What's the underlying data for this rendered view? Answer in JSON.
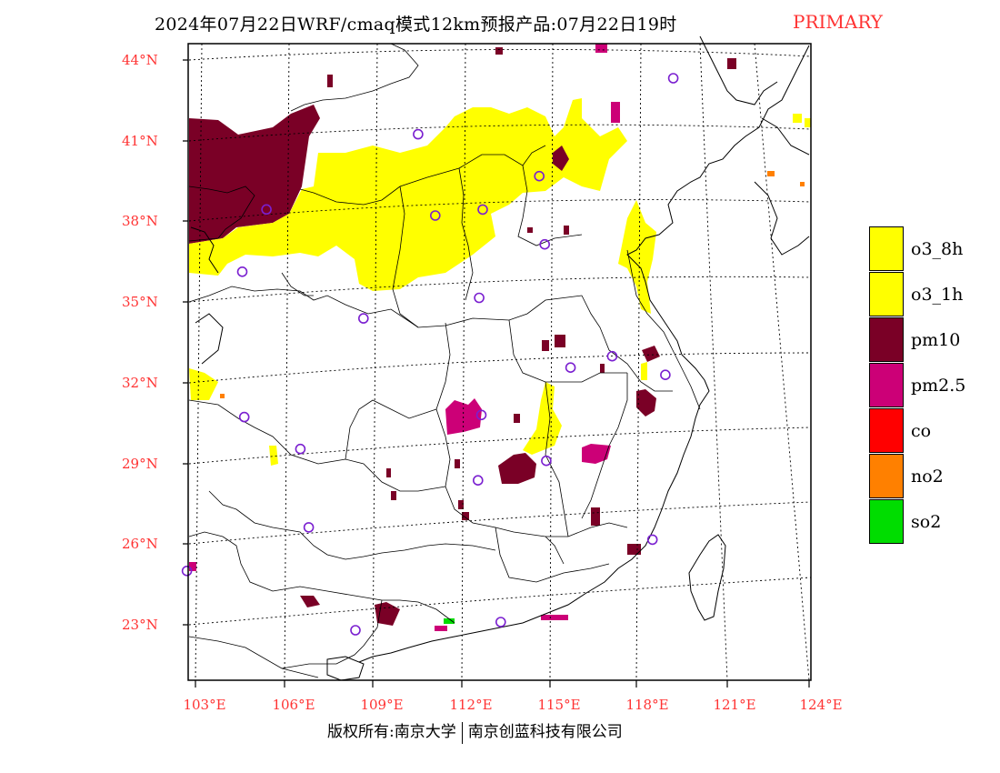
{
  "title": {
    "main": "2024年07月22日WRF/cmaq模式12km预报产品:07月22日19时",
    "tag": "PRIMARY",
    "tag_color": "#ff3333"
  },
  "map": {
    "lat_labels": [
      "44°N",
      "41°N",
      "38°N",
      "35°N",
      "32°N",
      "29°N",
      "26°N",
      "23°N"
    ],
    "lon_labels": [
      "103°E",
      "106°E",
      "109°E",
      "112°E",
      "115°E",
      "118°E",
      "121°E",
      "124°E"
    ],
    "extent": {
      "lon": [
        103,
        124
      ],
      "lat": [
        21,
        44.5
      ]
    }
  },
  "legend": {
    "items": [
      {
        "label": "o3_8h",
        "color": "#ffff00"
      },
      {
        "label": "o3_1h",
        "color": "#ffff00"
      },
      {
        "label": "pm10",
        "color": "#7a0026"
      },
      {
        "label": "pm2.5",
        "color": "#cc0077"
      },
      {
        "label": "co",
        "color": "#ff0000"
      },
      {
        "label": "no2",
        "color": "#ff8000"
      },
      {
        "label": "so2",
        "color": "#00dd00"
      }
    ]
  },
  "stations": [
    {
      "lon": 119.0,
      "lat": 43.0
    },
    {
      "lon": 110.4,
      "lat": 41.1
    },
    {
      "lon": 114.5,
      "lat": 39.5
    },
    {
      "lon": 105.3,
      "lat": 38.4
    },
    {
      "lon": 111.0,
      "lat": 38.1
    },
    {
      "lon": 112.6,
      "lat": 38.3
    },
    {
      "lon": 114.7,
      "lat": 37.0
    },
    {
      "lon": 104.5,
      "lat": 36.1
    },
    {
      "lon": 112.5,
      "lat": 35.0
    },
    {
      "lon": 108.6,
      "lat": 34.3
    },
    {
      "lon": 115.6,
      "lat": 32.4
    },
    {
      "lon": 117.0,
      "lat": 32.8
    },
    {
      "lon": 118.8,
      "lat": 32.1
    },
    {
      "lon": 104.6,
      "lat": 30.7
    },
    {
      "lon": 112.6,
      "lat": 30.7
    },
    {
      "lon": 106.5,
      "lat": 29.5
    },
    {
      "lon": 114.8,
      "lat": 29.0
    },
    {
      "lon": 112.5,
      "lat": 28.3
    },
    {
      "lon": 106.8,
      "lat": 26.6
    },
    {
      "lon": 118.4,
      "lat": 26.1
    },
    {
      "lon": 102.7,
      "lat": 25.0
    },
    {
      "lon": 108.4,
      "lat": 22.8
    },
    {
      "lon": 113.3,
      "lat": 23.1
    }
  ],
  "footer": {
    "left": "版权所有:南京大学",
    "right": "南京创蓝科技有限公司"
  }
}
